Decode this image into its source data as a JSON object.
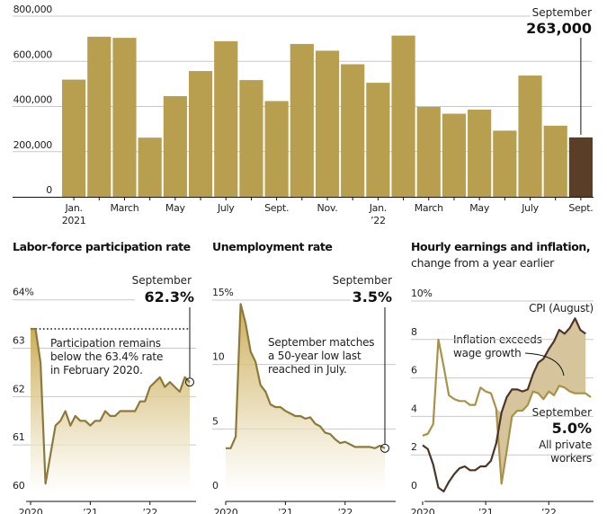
{
  "chart_data": [
    {
      "id": "payrolls",
      "type": "bar",
      "title": "",
      "xlabel": "",
      "ylabel": "",
      "ylim": [
        0,
        800000
      ],
      "yticks": [
        0,
        200000,
        400000,
        600000,
        800000
      ],
      "ytick_labels": [
        "0",
        "200,000",
        "400,000",
        "600,000",
        "800,000"
      ],
      "grid": true,
      "categories": [
        "Jan 2021",
        "Feb 2021",
        "Mar 2021",
        "Apr 2021",
        "May 2021",
        "Jun 2021",
        "Jul 2021",
        "Aug 2021",
        "Sep 2021",
        "Oct 2021",
        "Nov 2021",
        "Dec 2021",
        "Jan 2022",
        "Feb 2022",
        "Mar 2022",
        "Apr 2022",
        "May 2022",
        "Jun 2022",
        "Jul 2022",
        "Aug 2022",
        "Sep 2022"
      ],
      "values": [
        519000,
        709000,
        704000,
        262000,
        446000,
        557000,
        689000,
        517000,
        424000,
        677000,
        647000,
        587000,
        505000,
        714000,
        398000,
        368000,
        386000,
        293000,
        537000,
        315000,
        263000
      ],
      "xtick_labels": [
        {
          "index": 0,
          "line1": "Jan.",
          "line2": "2021"
        },
        {
          "index": 2,
          "line1": "March",
          "line2": ""
        },
        {
          "index": 4,
          "line1": "May",
          "line2": ""
        },
        {
          "index": 6,
          "line1": "July",
          "line2": ""
        },
        {
          "index": 8,
          "line1": "Sept.",
          "line2": ""
        },
        {
          "index": 10,
          "line1": "Nov.",
          "line2": ""
        },
        {
          "index": 12,
          "line1": "Jan.",
          "line2": "’22"
        },
        {
          "index": 14,
          "line1": "March",
          "line2": ""
        },
        {
          "index": 16,
          "line1": "May",
          "line2": ""
        },
        {
          "index": 18,
          "line1": "July",
          "line2": ""
        },
        {
          "index": 20,
          "line1": "Sept.",
          "line2": ""
        }
      ],
      "highlight_index": 20,
      "callout": {
        "label": "September",
        "value": "263,000"
      },
      "colors": {
        "bar": "#b89f4f",
        "highlight": "#5a3e28"
      }
    },
    {
      "id": "participation",
      "type": "area",
      "title": "Labor-force participation rate",
      "ylim": [
        60,
        64
      ],
      "yticks": [
        60,
        61,
        62,
        63,
        64
      ],
      "ytick_labels": [
        "60",
        "61",
        "62",
        "63",
        "64%"
      ],
      "xtick_labels": [
        "2020",
        "’21",
        "’22"
      ],
      "grid": true,
      "x_start": "Jan 2020",
      "x_end": "Sep 2022",
      "values": [
        63.4,
        63.4,
        62.7,
        60.2,
        60.8,
        61.4,
        61.5,
        61.7,
        61.4,
        61.6,
        61.5,
        61.5,
        61.4,
        61.5,
        61.5,
        61.7,
        61.6,
        61.6,
        61.7,
        61.7,
        61.7,
        61.7,
        61.9,
        61.9,
        62.2,
        62.3,
        62.4,
        62.2,
        62.3,
        62.2,
        62.1,
        62.4,
        62.3
      ],
      "reference_line": 63.4,
      "annotation": [
        "Participation remains",
        "below the 63.4% rate",
        "in February 2020."
      ],
      "callout": {
        "label": "September",
        "value": "62.3%"
      },
      "colors": {
        "line": "#8c7a3a",
        "fill_top": "#c9a84f"
      }
    },
    {
      "id": "unemployment",
      "type": "area",
      "title": "Unemployment rate",
      "ylim": [
        0,
        15
      ],
      "yticks": [
        0,
        5,
        10,
        15
      ],
      "ytick_labels": [
        "0",
        "5",
        "10",
        "15%"
      ],
      "xtick_labels": [
        "2020",
        "’21",
        "’22"
      ],
      "grid": true,
      "x_start": "Jan 2020",
      "x_end": "Sep 2022",
      "values": [
        3.5,
        3.5,
        4.4,
        14.7,
        13.2,
        11.0,
        10.2,
        8.4,
        7.9,
        6.9,
        6.7,
        6.7,
        6.4,
        6.2,
        6.0,
        6.0,
        5.8,
        5.9,
        5.4,
        5.2,
        4.7,
        4.6,
        4.2,
        3.9,
        4.0,
        3.8,
        3.6,
        3.6,
        3.6,
        3.6,
        3.5,
        3.7,
        3.5
      ],
      "annotation": [
        "September matches",
        "a 50-year low last",
        "reached in July."
      ],
      "callout": {
        "label": "September",
        "value": "3.5%"
      },
      "colors": {
        "line": "#8c7a3a",
        "fill_top": "#c9a84f"
      }
    },
    {
      "id": "earnings-inflation",
      "type": "line",
      "title": "Hourly earnings and inflation,",
      "subtitle": "change from a year earlier",
      "ylim": [
        0,
        10
      ],
      "yticks": [
        0,
        2,
        4,
        6,
        8,
        10
      ],
      "ytick_labels": [
        "0",
        "2",
        "4",
        "6",
        "8",
        "10%"
      ],
      "xtick_labels": [
        "2020",
        "’21",
        "’22"
      ],
      "grid": true,
      "x_start": "Jan 2020",
      "series": [
        {
          "name": "All private workers",
          "x_end": "Sep 2022",
          "values": [
            3.0,
            3.1,
            3.6,
            8.0,
            6.6,
            5.1,
            4.9,
            4.8,
            4.8,
            4.6,
            4.6,
            5.5,
            5.3,
            5.2,
            4.4,
            0.5,
            2.2,
            4.0,
            4.3,
            4.3,
            4.6,
            5.3,
            5.2,
            4.9,
            5.3,
            5.1,
            5.6,
            5.5,
            5.3,
            5.2,
            5.2,
            5.2,
            5.0
          ],
          "color": "#a8924a"
        },
        {
          "name": "CPI (August)",
          "x_end": "Aug 2022",
          "values": [
            2.5,
            2.3,
            1.5,
            0.3,
            0.1,
            0.6,
            1.0,
            1.3,
            1.4,
            1.2,
            1.2,
            1.4,
            1.4,
            1.7,
            2.6,
            4.2,
            5.0,
            5.4,
            5.4,
            5.3,
            5.4,
            6.2,
            6.8,
            7.0,
            7.5,
            7.9,
            8.5,
            8.3,
            8.6,
            9.1,
            8.5,
            8.3
          ],
          "color": "#4e3626"
        }
      ],
      "shaded_region": "Inflation exceeds wage growth",
      "annotation": [
        "Inflation exceeds",
        "wage growth"
      ],
      "cpi_label": "CPI (August)",
      "callout": {
        "label": "September",
        "value": "5.0%",
        "sub": [
          "All private",
          "workers"
        ]
      },
      "colors": {
        "shade": "#d6c59c"
      }
    }
  ]
}
